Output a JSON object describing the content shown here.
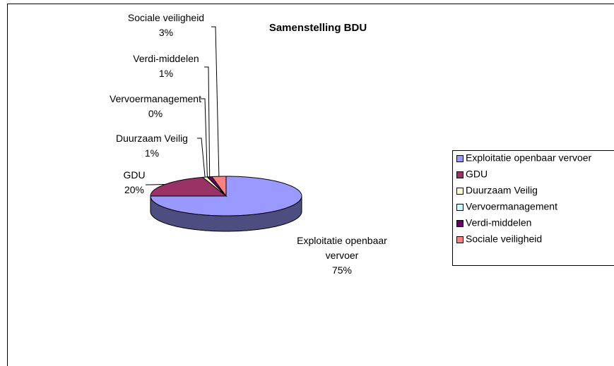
{
  "chart_data": {
    "type": "pie",
    "title": "Samenstelling BDU",
    "categories": [
      "Exploitatie openbaar vervoer",
      "GDU",
      "Duurzaam Veilig",
      "Vervoermanagement",
      "Verdi-middelen",
      "Sociale veiligheid"
    ],
    "values": [
      75,
      20,
      1,
      0,
      1,
      3
    ],
    "value_labels": [
      "75%",
      "20%",
      "1%",
      "0%",
      "1%",
      "3%"
    ],
    "colors": [
      "#9999ff",
      "#993366",
      "#ffffcc",
      "#ccffff",
      "#660066",
      "#ff8080"
    ],
    "legend": "right",
    "three_d": true
  }
}
